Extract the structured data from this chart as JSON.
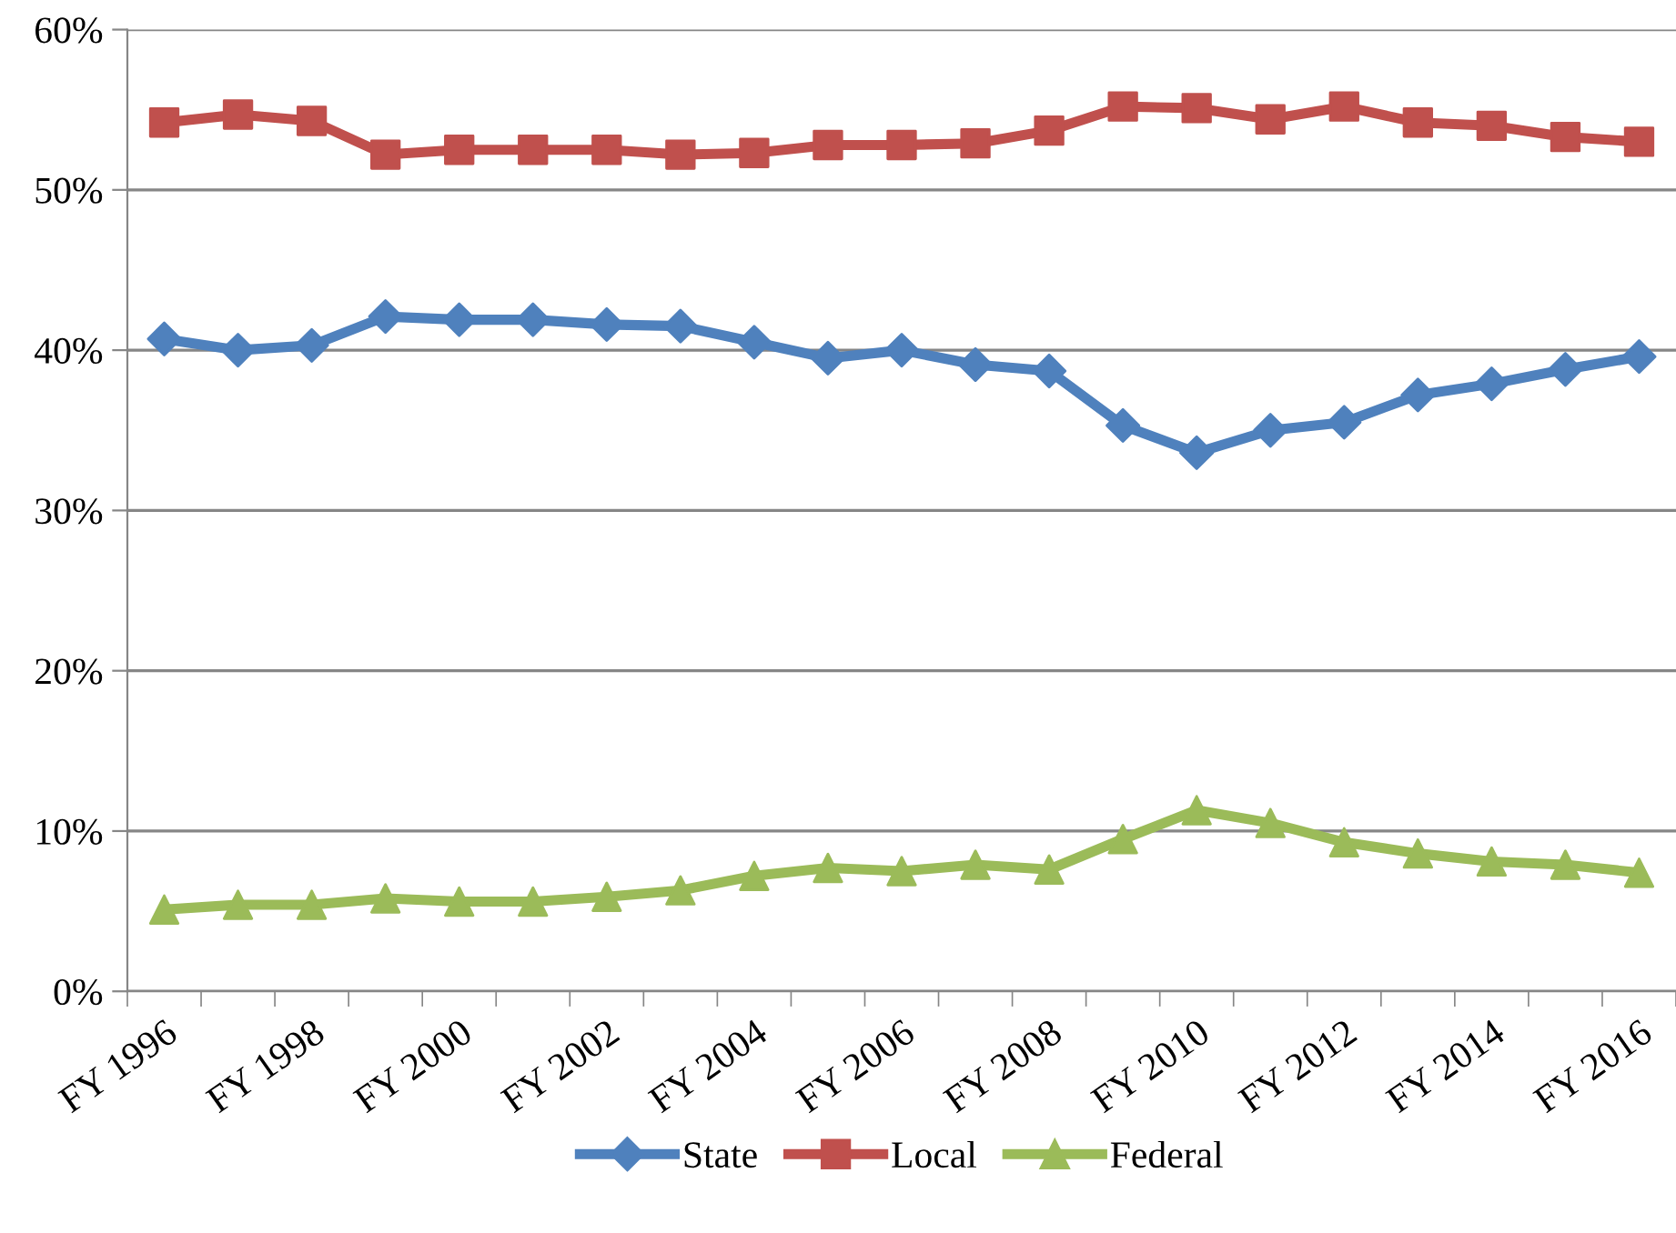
{
  "chart_data": {
    "type": "line",
    "categories": [
      "FY 1996",
      null,
      "FY 1998",
      null,
      "FY 2000",
      null,
      "FY 2002",
      null,
      "FY 2004",
      null,
      "FY 2006",
      null,
      "FY 2008",
      null,
      "FY 2010",
      null,
      "FY 2012",
      null,
      "FY 2014",
      null,
      "FY 2016"
    ],
    "series": [
      {
        "name": "State",
        "color": "#4f81bd",
        "marker": "diamond",
        "values": [
          40.7,
          40.0,
          40.3,
          42.1,
          41.9,
          41.9,
          41.6,
          41.5,
          40.5,
          39.5,
          40.0,
          39.1,
          38.7,
          35.3,
          33.6,
          35.0,
          35.5,
          37.2,
          37.9,
          38.8,
          39.6
        ]
      },
      {
        "name": "Local",
        "color": "#c0504d",
        "marker": "square",
        "values": [
          54.2,
          54.7,
          54.3,
          52.2,
          52.5,
          52.5,
          52.5,
          52.2,
          52.3,
          52.8,
          52.8,
          52.9,
          53.7,
          55.2,
          55.1,
          54.4,
          55.2,
          54.2,
          54.0,
          53.3,
          53.0
        ]
      },
      {
        "name": "Federal",
        "color": "#9bbb59",
        "marker": "triangle",
        "values": [
          5.1,
          5.4,
          5.4,
          5.8,
          5.6,
          5.6,
          5.9,
          6.3,
          7.2,
          7.7,
          7.5,
          7.9,
          7.6,
          9.5,
          11.3,
          10.5,
          9.3,
          8.6,
          8.1,
          7.9,
          7.4
        ]
      }
    ],
    "ylim": [
      0,
      60
    ],
    "yticks": [
      {
        "value": 0,
        "label": "0%"
      },
      {
        "value": 10,
        "label": "10%"
      },
      {
        "value": 20,
        "label": "20%"
      },
      {
        "value": 30,
        "label": "30%"
      },
      {
        "value": 40,
        "label": "40%"
      },
      {
        "value": 50,
        "label": "50%"
      },
      {
        "value": 60,
        "label": "60%"
      }
    ],
    "grid": "y",
    "legend": "bottom",
    "line_style": "solid"
  }
}
